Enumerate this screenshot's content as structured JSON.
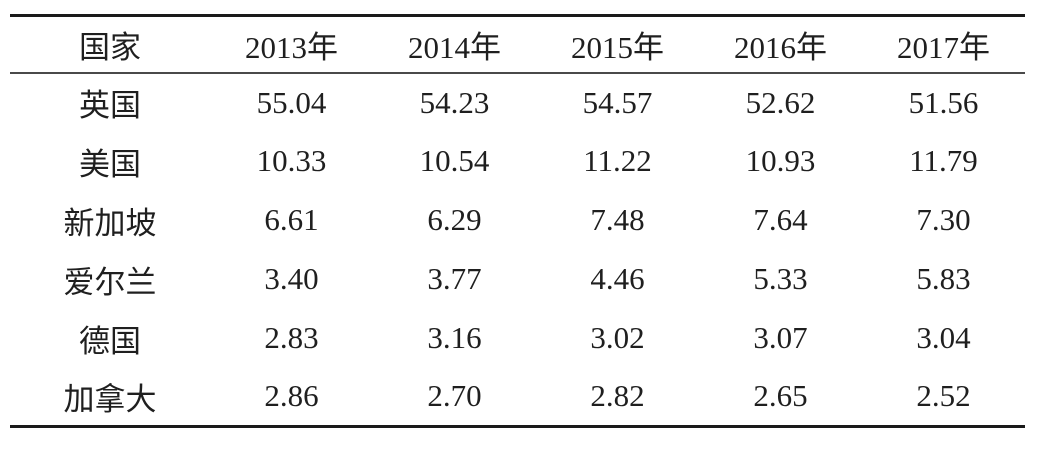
{
  "table": {
    "columns": [
      "国家",
      "2013年",
      "2014年",
      "2015年",
      "2016年",
      "2017年"
    ],
    "rows": [
      {
        "country": "英国",
        "values": [
          "55.04",
          "54.23",
          "54.57",
          "52.62",
          "51.56"
        ]
      },
      {
        "country": "美国",
        "values": [
          "10.33",
          "10.54",
          "11.22",
          "10.93",
          "11.79"
        ]
      },
      {
        "country": "新加坡",
        "values": [
          "6.61",
          "6.29",
          "7.48",
          "7.64",
          "7.30"
        ]
      },
      {
        "country": "爱尔兰",
        "values": [
          "3.40",
          "3.77",
          "4.46",
          "5.33",
          "5.83"
        ]
      },
      {
        "country": "德国",
        "values": [
          "2.83",
          "3.16",
          "3.02",
          "3.07",
          "3.04"
        ]
      },
      {
        "country": "加拿大",
        "values": [
          "2.86",
          "2.70",
          "2.82",
          "2.65",
          "2.52"
        ]
      }
    ],
    "colors": {
      "text": "#1f1f1f",
      "rule_heavy": "#1a1a1a",
      "rule_light": "#4a4a4a",
      "background": "#ffffff"
    }
  }
}
